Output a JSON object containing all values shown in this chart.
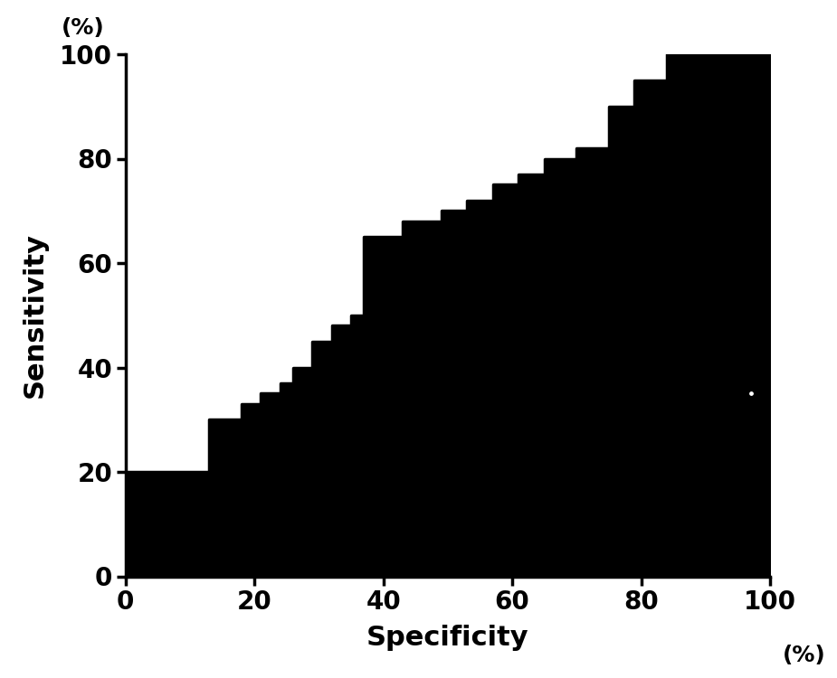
{
  "title": "",
  "xlabel": "Specificity",
  "ylabel": "Sensitivity",
  "xlabel_unit": "(%)",
  "ylabel_unit": "(%)",
  "xlim": [
    0,
    100
  ],
  "ylim": [
    0,
    100
  ],
  "xticks": [
    0,
    20,
    40,
    60,
    80,
    100
  ],
  "yticks": [
    0,
    20,
    40,
    60,
    80,
    100
  ],
  "background_color": "#ffffff",
  "curve_color": "#000000",
  "fill_color": "#000000",
  "roc_points": [
    [
      0,
      0
    ],
    [
      0,
      20
    ],
    [
      13,
      20
    ],
    [
      13,
      30
    ],
    [
      18,
      30
    ],
    [
      18,
      33
    ],
    [
      21,
      33
    ],
    [
      21,
      35
    ],
    [
      24,
      35
    ],
    [
      24,
      37
    ],
    [
      26,
      37
    ],
    [
      26,
      40
    ],
    [
      29,
      40
    ],
    [
      29,
      45
    ],
    [
      32,
      45
    ],
    [
      32,
      48
    ],
    [
      35,
      48
    ],
    [
      35,
      50
    ],
    [
      37,
      50
    ],
    [
      37,
      65
    ],
    [
      43,
      65
    ],
    [
      43,
      68
    ],
    [
      49,
      68
    ],
    [
      49,
      70
    ],
    [
      53,
      70
    ],
    [
      53,
      72
    ],
    [
      57,
      72
    ],
    [
      57,
      75
    ],
    [
      61,
      75
    ],
    [
      61,
      77
    ],
    [
      65,
      77
    ],
    [
      65,
      80
    ],
    [
      70,
      80
    ],
    [
      70,
      82
    ],
    [
      75,
      82
    ],
    [
      75,
      90
    ],
    [
      79,
      90
    ],
    [
      79,
      95
    ],
    [
      84,
      95
    ],
    [
      84,
      100
    ],
    [
      100,
      100
    ]
  ],
  "circle_point": [
    97,
    35
  ],
  "label_fontsize": 22,
  "tick_fontsize": 20,
  "unit_fontsize": 18,
  "line_width": 2.5
}
